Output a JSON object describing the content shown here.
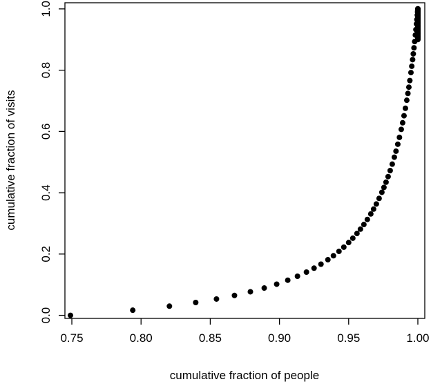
{
  "chart_data": {
    "type": "scatter",
    "title": "",
    "xlabel": "cumulative fraction of people",
    "ylabel": "cumulative fraction of visits",
    "xlim": [
      0.745,
      1.005
    ],
    "ylim": [
      -0.01,
      1.02
    ],
    "xticks": [
      "0.75",
      "0.80",
      "0.85",
      "0.90",
      "0.95",
      "1.00"
    ],
    "yticks": [
      "0.0",
      "0.2",
      "0.4",
      "0.6",
      "0.8",
      "1.0"
    ],
    "grid": false,
    "legend": "none",
    "point_color": "#000000",
    "curve_shape_c": 0.084,
    "x": [
      0.749,
      0.794,
      0.8205,
      0.8395,
      0.8545,
      0.8675,
      0.879,
      0.889,
      0.898,
      0.906,
      0.913,
      0.9195,
      0.925,
      0.93,
      0.935,
      0.939,
      0.943,
      0.9465,
      0.95,
      0.953,
      0.956,
      0.9585,
      0.961,
      0.9635,
      0.966,
      0.968,
      0.97,
      0.972,
      0.974,
      0.9755,
      0.977,
      0.9785,
      0.98,
      0.9815,
      0.983,
      0.9842,
      0.9855,
      0.9867,
      0.988,
      0.989,
      0.99,
      0.991,
      0.992,
      0.9928,
      0.9935,
      0.9942,
      0.995,
      0.9956,
      0.9962,
      0.9967,
      0.9972,
      0.9977,
      0.9982,
      0.9986,
      0.999,
      0.9993,
      0.9996,
      0.9998,
      0.9999,
      1.0,
      1.0,
      1.0,
      1.0,
      1.0
    ]
  }
}
